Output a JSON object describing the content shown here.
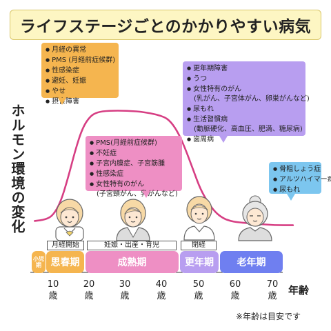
{
  "title": "ライフステージごとのかかりやすい病気",
  "y_axis_label": "ホルモン環境の変化",
  "x_axis_label": "年齢",
  "footnote": "※年齢は目安です",
  "age_ticks": [
    {
      "num": "10",
      "unit": "歳"
    },
    {
      "num": "20",
      "unit": "歳"
    },
    {
      "num": "30",
      "unit": "歳"
    },
    {
      "num": "40",
      "unit": "歳"
    },
    {
      "num": "50",
      "unit": "歳"
    },
    {
      "num": "60",
      "unit": "歳"
    },
    {
      "num": "70",
      "unit": "歳"
    }
  ],
  "life_events": [
    "月経開始",
    "妊娠・出産・育児",
    "閉経"
  ],
  "stages": [
    {
      "label": "小児期",
      "color": "#f5b54f"
    },
    {
      "label": "思春期",
      "color": "#f5b54f"
    },
    {
      "label": "成熟期",
      "color": "#ee8fc4"
    },
    {
      "label": "更年期",
      "color": "#b89ef0"
    },
    {
      "label": "老年期",
      "color": "#6f7ff0"
    }
  ],
  "callouts": {
    "youth": {
      "color": "#f5b54f",
      "items": [
        {
          "text": "月経の異常",
          "bullet": true
        },
        {
          "text": "PMS (月経前症候群)",
          "bullet": true
        },
        {
          "text": "性感染症",
          "bullet": true
        },
        {
          "text": "避妊、妊娠",
          "bullet": true
        },
        {
          "text": "やせ",
          "bullet": true
        },
        {
          "text": "摂食障害",
          "bullet": true
        }
      ]
    },
    "mature": {
      "color": "#ee8fc4",
      "items": [
        {
          "text": "PMS(月経前症候群)",
          "bullet": true
        },
        {
          "text": "不妊症",
          "bullet": true
        },
        {
          "text": "子宮内膜症、子宮筋腫",
          "bullet": true
        },
        {
          "text": "性感染症",
          "bullet": true
        },
        {
          "text": "女性特有のがん",
          "bullet": true
        },
        {
          "text": "(子宮頸がん、乳がんなど)",
          "bullet": false
        }
      ]
    },
    "menopause": {
      "color": "#b89ef0",
      "items": [
        {
          "text": "更年期障害",
          "bullet": true
        },
        {
          "text": "うつ",
          "bullet": true
        },
        {
          "text": "女性特有のがん",
          "bullet": true
        },
        {
          "text": "(乳がん、子宮体がん、卵巣がんなど)",
          "bullet": false
        },
        {
          "text": "尿もれ",
          "bullet": true
        },
        {
          "text": "生活習慣病",
          "bullet": true
        },
        {
          "text": "(動脈硬化、高血圧、肥満、糖尿病)",
          "bullet": false
        },
        {
          "text": "歯周病",
          "bullet": true
        }
      ]
    },
    "elderly": {
      "color": "#7cc6ef",
      "items": [
        {
          "text": "骨粗しょう症",
          "bullet": true
        },
        {
          "text": "アルツハイマー病",
          "bullet": true
        },
        {
          "text": "尿もれ",
          "bullet": true
        }
      ]
    }
  },
  "hormone_curve": {
    "color": "#d63e83",
    "age": [
      5,
      8,
      10,
      12,
      14,
      16,
      18,
      20,
      22,
      25,
      30,
      35,
      40,
      42,
      44,
      46,
      48,
      50,
      52,
      54,
      56,
      58,
      60,
      65,
      70,
      75
    ],
    "level": [
      0.12,
      0.13,
      0.16,
      0.25,
      0.42,
      0.62,
      0.78,
      0.86,
      0.89,
      0.9,
      0.9,
      0.89,
      0.86,
      0.82,
      0.74,
      0.62,
      0.48,
      0.34,
      0.25,
      0.18,
      0.14,
      0.12,
      0.11,
      0.1,
      0.09,
      0.09
    ]
  },
  "figures": [
    "girl",
    "woman",
    "middle-aged-woman",
    "elderly-woman"
  ]
}
